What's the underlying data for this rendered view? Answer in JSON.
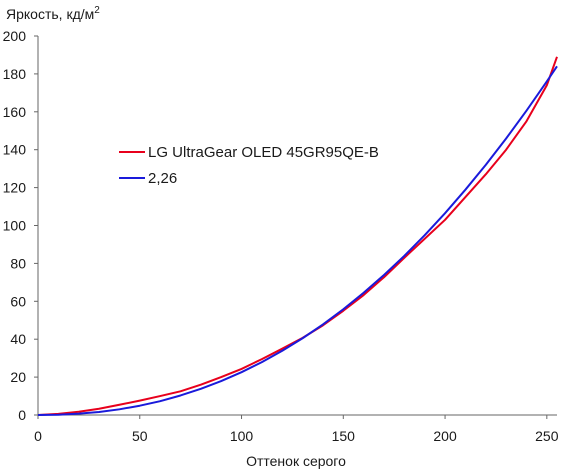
{
  "chart_data": {
    "type": "line",
    "ylabel": "Яркость, кд/м",
    "ylabel_sup": "2",
    "xlabel": "Оттенок серого",
    "xlim": [
      0,
      255
    ],
    "ylim": [
      0,
      200
    ],
    "xticks": [
      0,
      50,
      100,
      150,
      200,
      250
    ],
    "yticks": [
      0,
      20,
      40,
      60,
      80,
      100,
      120,
      140,
      160,
      180,
      200
    ],
    "grid": false,
    "legend_position": "center-left",
    "series": [
      {
        "name": "LG UltraGear OLED 45GR95QE-B",
        "color": "#e8001c",
        "x": [
          0,
          10,
          20,
          30,
          40,
          50,
          60,
          70,
          80,
          90,
          100,
          110,
          120,
          130,
          140,
          150,
          160,
          170,
          180,
          190,
          200,
          210,
          220,
          230,
          240,
          250,
          255
        ],
        "y": [
          0,
          0.6,
          1.7,
          3.3,
          5.4,
          7.6,
          10.0,
          12.5,
          16.0,
          20.0,
          24.3,
          29.5,
          35.0,
          40.7,
          47.3,
          55.0,
          63.3,
          72.7,
          83.0,
          93.0,
          103.0,
          115.0,
          127.0,
          140.0,
          155.0,
          174.0,
          189.0
        ]
      },
      {
        "name": "2,26",
        "color": "#1a1adb",
        "x": [
          0,
          10,
          20,
          30,
          40,
          50,
          60,
          70,
          80,
          90,
          100,
          110,
          120,
          130,
          140,
          150,
          160,
          170,
          180,
          190,
          200,
          210,
          220,
          230,
          240,
          250,
          255
        ],
        "y": [
          0,
          0.1,
          0.7,
          1.6,
          3.0,
          4.9,
          7.3,
          10.3,
          13.8,
          17.9,
          22.6,
          27.9,
          33.9,
          40.5,
          47.8,
          55.8,
          64.5,
          73.9,
          84.0,
          94.9,
          106.5,
          118.9,
          132.0,
          145.9,
          160.6,
          176.0,
          184.0
        ]
      }
    ]
  }
}
